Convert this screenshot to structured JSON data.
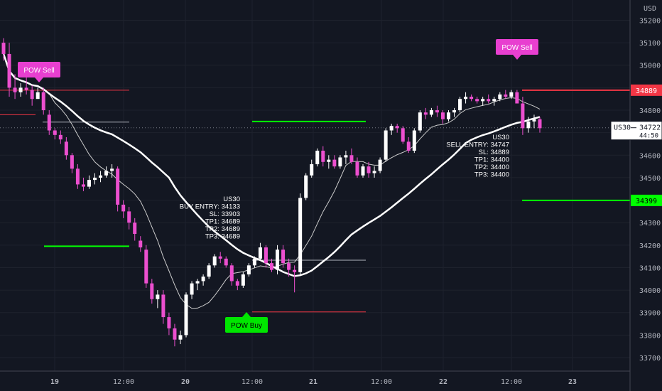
{
  "symbol": "US30",
  "currency_label": "USD",
  "last_price": "34722",
  "countdown": "44:50",
  "colors": {
    "background": "#131722",
    "grid": "#1e222d",
    "axis_text": "#b2b5be",
    "bull_candle": "#ffffff",
    "bear_candle": "#ec4fcf",
    "signal_green": "#00ff00",
    "signal_red": "#f23645",
    "pow_sell": "#e83fd0",
    "pow_buy": "#00e600",
    "ma_fast": "#cccccc",
    "ma_slow": "#ffffff"
  },
  "chart_data": {
    "type": "candlestick",
    "y_range": [
      33640,
      35290
    ],
    "y_ticks": [
      33700,
      33800,
      33900,
      34000,
      34100,
      34200,
      34300,
      34400,
      34500,
      34600,
      34700,
      34800,
      34900,
      35000,
      35100,
      35200
    ],
    "x_ticks": [
      "19",
      "12:00",
      "20",
      "12:00",
      "21",
      "12:00",
      "22",
      "12:00",
      "23"
    ],
    "candles": [
      [
        35100,
        35120,
        35020,
        35050
      ],
      [
        35050,
        35100,
        34860,
        34900
      ],
      [
        34900,
        34960,
        34850,
        34880
      ],
      [
        34880,
        34920,
        34860,
        34900
      ],
      [
        34900,
        34950,
        34870,
        34890
      ],
      [
        34890,
        34910,
        34820,
        34850
      ],
      [
        34850,
        34900,
        34860,
        34880
      ],
      [
        34880,
        34900,
        34780,
        34800
      ],
      [
        34780,
        34800,
        34690,
        34710
      ],
      [
        34710,
        34720,
        34670,
        34690
      ],
      [
        34690,
        34710,
        34650,
        34670
      ],
      [
        34660,
        34680,
        34580,
        34600
      ],
      [
        34600,
        34610,
        34520,
        34540
      ],
      [
        34540,
        34560,
        34450,
        34470
      ],
      [
        34470,
        34500,
        34440,
        34460
      ],
      [
        34460,
        34510,
        34450,
        34490
      ],
      [
        34490,
        34520,
        34470,
        34500
      ],
      [
        34500,
        34530,
        34480,
        34510
      ],
      [
        34510,
        34550,
        34500,
        34530
      ],
      [
        34530,
        34560,
        34500,
        34540
      ],
      [
        34540,
        34550,
        34350,
        34380
      ],
      [
        34380,
        34400,
        34320,
        34350
      ],
      [
        34350,
        34370,
        34270,
        34300
      ],
      [
        34300,
        34320,
        34220,
        34250
      ],
      [
        34220,
        34240,
        34170,
        34190
      ],
      [
        34180,
        34200,
        34010,
        34030
      ],
      [
        34030,
        34050,
        33940,
        33960
      ],
      [
        33960,
        34000,
        33920,
        33980
      ],
      [
        33980,
        34000,
        33850,
        33880
      ],
      [
        33880,
        33900,
        33800,
        33830
      ],
      [
        33830,
        33850,
        33750,
        33780
      ],
      [
        33780,
        33820,
        33760,
        33800
      ],
      [
        33800,
        33990,
        33790,
        33980
      ],
      [
        33980,
        34040,
        33960,
        34030
      ],
      [
        34030,
        34050,
        34000,
        34040
      ],
      [
        34040,
        34070,
        34020,
        34060
      ],
      [
        34060,
        34120,
        34050,
        34110
      ],
      [
        34110,
        34160,
        34100,
        34150
      ],
      [
        34150,
        34170,
        34120,
        34140
      ],
      [
        34140,
        34150,
        34100,
        34110
      ],
      [
        34110,
        34120,
        34020,
        34040
      ],
      [
        34040,
        34050,
        34000,
        34020
      ],
      [
        34020,
        34080,
        34010,
        34070
      ],
      [
        34070,
        34120,
        34060,
        34110
      ],
      [
        34110,
        34150,
        34100,
        34140
      ],
      [
        34140,
        34210,
        34130,
        34190
      ],
      [
        34190,
        34200,
        34100,
        34120
      ],
      [
        34120,
        34140,
        34080,
        34090
      ],
      [
        34090,
        34200,
        34070,
        34180
      ],
      [
        34180,
        34200,
        34100,
        34120
      ],
      [
        34120,
        34140,
        34060,
        34090
      ],
      [
        34090,
        34110,
        33990,
        34080
      ],
      [
        34080,
        34430,
        34070,
        34410
      ],
      [
        34410,
        34520,
        34400,
        34510
      ],
      [
        34510,
        34580,
        34500,
        34560
      ],
      [
        34560,
        34630,
        34550,
        34620
      ],
      [
        34620,
        34640,
        34550,
        34570
      ],
      [
        34570,
        34600,
        34540,
        34580
      ],
      [
        34580,
        34600,
        34540,
        34550
      ],
      [
        34550,
        34600,
        34540,
        34590
      ],
      [
        34590,
        34620,
        34560,
        34600
      ],
      [
        34600,
        34630,
        34560,
        34570
      ],
      [
        34570,
        34590,
        34500,
        34510
      ],
      [
        34510,
        34560,
        34500,
        34550
      ],
      [
        34550,
        34570,
        34500,
        34520
      ],
      [
        34520,
        34550,
        34500,
        34530
      ],
      [
        34530,
        34590,
        34520,
        34580
      ],
      [
        34580,
        34720,
        34570,
        34710
      ],
      [
        34710,
        34740,
        34690,
        34730
      ],
      [
        34730,
        34740,
        34700,
        34720
      ],
      [
        34720,
        34730,
        34650,
        34660
      ],
      [
        34660,
        34680,
        34610,
        34620
      ],
      [
        34620,
        34720,
        34610,
        34710
      ],
      [
        34710,
        34800,
        34700,
        34790
      ],
      [
        34790,
        34810,
        34760,
        34780
      ],
      [
        34780,
        34810,
        34770,
        34800
      ],
      [
        34800,
        34820,
        34770,
        34790
      ],
      [
        34790,
        34800,
        34740,
        34760
      ],
      [
        34760,
        34800,
        34750,
        34790
      ],
      [
        34790,
        34810,
        34770,
        34800
      ],
      [
        34800,
        34860,
        34790,
        34850
      ],
      [
        34850,
        34880,
        34830,
        34860
      ],
      [
        34860,
        34870,
        34840,
        34850
      ],
      [
        34850,
        34860,
        34830,
        34840
      ],
      [
        34840,
        34860,
        34820,
        34850
      ],
      [
        34850,
        34870,
        34830,
        34840
      ],
      [
        34840,
        34860,
        34820,
        34850
      ],
      [
        34850,
        34880,
        34840,
        34870
      ],
      [
        34870,
        34890,
        34850,
        34860
      ],
      [
        34860,
        34890,
        34850,
        34880
      ],
      [
        34880,
        34890,
        34840,
        34830
      ],
      [
        34830,
        34860,
        34690,
        34720
      ],
      [
        34720,
        34770,
        34700,
        34750
      ],
      [
        34750,
        34780,
        34720,
        34760
      ],
      [
        34760,
        34770,
        34700,
        34720
      ]
    ],
    "signals": [
      {
        "name": "POW Sell",
        "type": "sell",
        "symbol": "US30",
        "entry_label": "SELL ENTRY: 34747",
        "sl": "SL: 34889",
        "tp1": "TP1: 34400",
        "tp2": "TP2: 34400",
        "tp3": "TP3: 34400"
      },
      {
        "name": "POW Buy",
        "type": "buy",
        "symbol": "US30",
        "entry_label": "BUY ENTRY: 34133",
        "sl": "SL: 33903",
        "tp1": "TP1: 34689",
        "tp2": "TP2: 34689",
        "tp3": "TP3: 34689"
      }
    ],
    "price_tags": [
      {
        "value": "34889",
        "color": "#f23645"
      },
      {
        "value": "34399",
        "color": "#00ff00"
      }
    ],
    "sell_marker_1": "POW Sell",
    "sell_marker_2": "POW Sell",
    "buy_marker": "POW Buy"
  }
}
